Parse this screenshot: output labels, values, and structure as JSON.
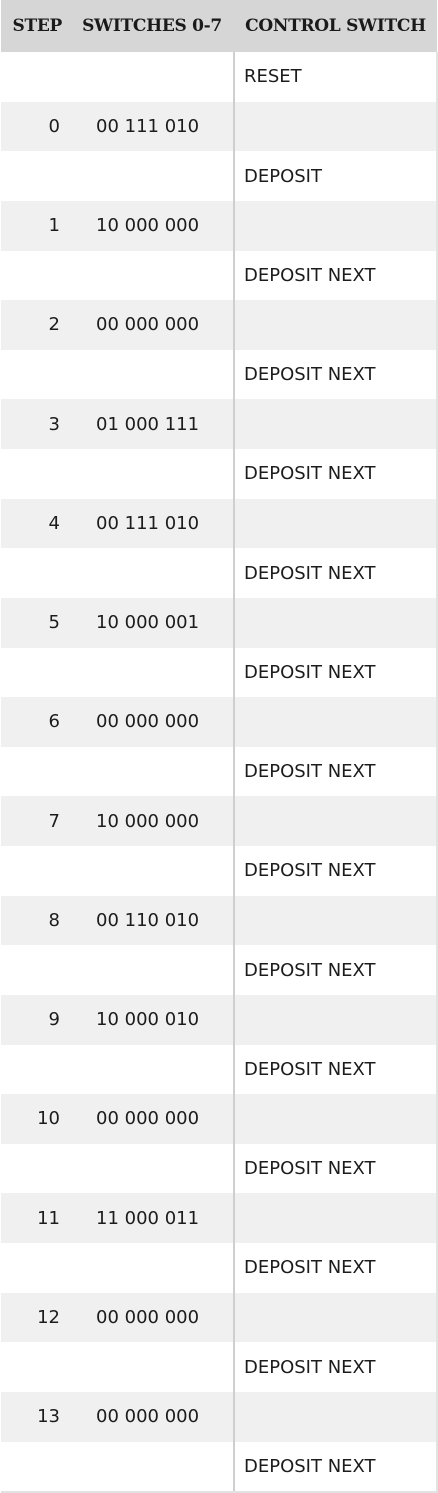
{
  "table": {
    "headers": {
      "step": "STEP",
      "switches": "SWITCHES 0-7",
      "control": "CONTROL SWITCH"
    },
    "rows": [
      {
        "step": "",
        "switches": "",
        "control": "RESET"
      },
      {
        "step": "0",
        "switches": "00 111 010",
        "control": ""
      },
      {
        "step": "",
        "switches": "",
        "control": "DEPOSIT"
      },
      {
        "step": "1",
        "switches": "10 000 000",
        "control": ""
      },
      {
        "step": "",
        "switches": "",
        "control": "DEPOSIT NEXT"
      },
      {
        "step": "2",
        "switches": "00 000 000",
        "control": ""
      },
      {
        "step": "",
        "switches": "",
        "control": "DEPOSIT NEXT"
      },
      {
        "step": "3",
        "switches": "01 000 111",
        "control": ""
      },
      {
        "step": "",
        "switches": "",
        "control": "DEPOSIT NEXT"
      },
      {
        "step": "4",
        "switches": "00 111 010",
        "control": ""
      },
      {
        "step": "",
        "switches": "",
        "control": "DEPOSIT NEXT"
      },
      {
        "step": "5",
        "switches": "10 000 001",
        "control": ""
      },
      {
        "step": "",
        "switches": "",
        "control": "DEPOSIT NEXT"
      },
      {
        "step": "6",
        "switches": "00 000 000",
        "control": ""
      },
      {
        "step": "",
        "switches": "",
        "control": "DEPOSIT NEXT"
      },
      {
        "step": "7",
        "switches": "10 000 000",
        "control": ""
      },
      {
        "step": "",
        "switches": "",
        "control": "DEPOSIT NEXT"
      },
      {
        "step": "8",
        "switches": "00 110 010",
        "control": ""
      },
      {
        "step": "",
        "switches": "",
        "control": "DEPOSIT NEXT"
      },
      {
        "step": "9",
        "switches": "10 000 010",
        "control": ""
      },
      {
        "step": "",
        "switches": "",
        "control": "DEPOSIT NEXT"
      },
      {
        "step": "10",
        "switches": "00 000 000",
        "control": ""
      },
      {
        "step": "",
        "switches": "",
        "control": "DEPOSIT NEXT"
      },
      {
        "step": "11",
        "switches": "11 000 011",
        "control": ""
      },
      {
        "step": "",
        "switches": "",
        "control": "DEPOSIT NEXT"
      },
      {
        "step": "12",
        "switches": "00 000 000",
        "control": ""
      },
      {
        "step": "",
        "switches": "",
        "control": "DEPOSIT NEXT"
      },
      {
        "step": "13",
        "switches": "00 000 000",
        "control": ""
      },
      {
        "step": "",
        "switches": "",
        "control": "DEPOSIT NEXT"
      }
    ]
  }
}
